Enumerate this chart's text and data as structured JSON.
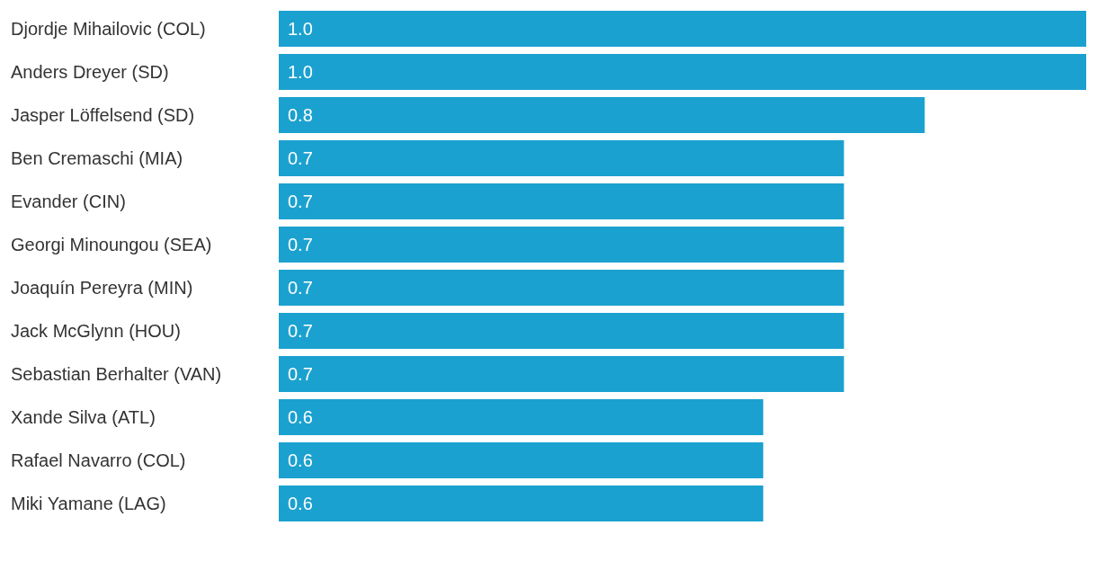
{
  "chart_data": {
    "type": "bar",
    "orientation": "horizontal",
    "categories": [
      "Djordje Mihailovic (COL)",
      "Anders Dreyer (SD)",
      "Jasper Löffelsend (SD)",
      "Ben Cremaschi (MIA)",
      "Evander (CIN)",
      "Georgi Minoungou (SEA)",
      "Joaquín Pereyra (MIN)",
      "Jack McGlynn (HOU)",
      "Sebastian Berhalter (VAN)",
      "Xande Silva (ATL)",
      "Rafael Navarro (COL)",
      "Miki Yamane (LAG)"
    ],
    "values": [
      1.0,
      1.0,
      0.8,
      0.7,
      0.7,
      0.7,
      0.7,
      0.7,
      0.7,
      0.6,
      0.6,
      0.6
    ],
    "value_labels": [
      "1.0",
      "1.0",
      "0.8",
      "0.7",
      "0.7",
      "0.7",
      "0.7",
      "0.7",
      "0.7",
      "0.6",
      "0.6",
      "0.6"
    ],
    "color": "#1ba1cf",
    "grid": false
  }
}
